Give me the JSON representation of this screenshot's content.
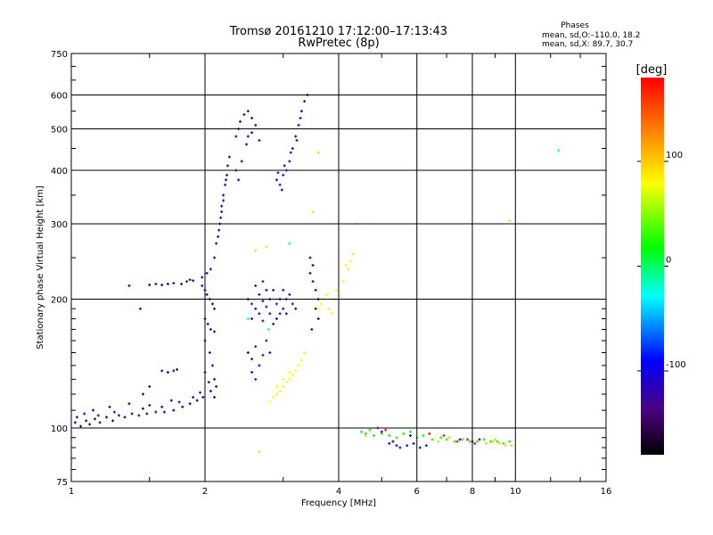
{
  "chart_data": {
    "type": "scatter",
    "title_line1": "Tromsø 20161210 17:12:00–17:13:43",
    "title_line2": "RwPretec (8p)",
    "info_header": "Phases",
    "info_line1": "mean, sd,O:–110.0, 18.2",
    "info_line2": "mean, sd,X:  89.7, 30.7",
    "xlabel": "Frequency [MHz]",
    "ylabel": "Stationary phase Virtual Height [km]",
    "x_scale": "log",
    "y_scale": "log",
    "xlim": [
      1,
      16
    ],
    "ylim": [
      75,
      750
    ],
    "x_ticks": [
      1,
      2,
      4,
      6,
      8,
      10,
      16
    ],
    "x_tick_labels": [
      "1",
      "2",
      "4",
      "6",
      "8",
      "10",
      "16"
    ],
    "y_ticks": [
      75,
      100,
      200,
      300,
      400,
      500,
      600,
      750
    ],
    "y_tick_labels": [
      "75",
      "100",
      "200",
      "300",
      "400",
      "500",
      "600",
      "750"
    ],
    "grid": true,
    "colorbar": {
      "label": "[deg]",
      "range": [
        -180,
        180
      ],
      "ticks": [
        100,
        0,
        -100
      ],
      "tick_labels": [
        "100",
        "0",
        "-100"
      ]
    },
    "clusters": [
      {
        "name": "E-region trace (purple)",
        "color_deg": -150,
        "points": [
          [
            1.02,
            103
          ],
          [
            1.05,
            101
          ],
          [
            1.08,
            104
          ],
          [
            1.1,
            102
          ],
          [
            1.13,
            105
          ],
          [
            1.16,
            103
          ],
          [
            1.2,
            106
          ],
          [
            1.24,
            104
          ],
          [
            1.28,
            107
          ],
          [
            1.32,
            106
          ],
          [
            1.37,
            108
          ],
          [
            1.42,
            107
          ],
          [
            1.48,
            108
          ],
          [
            1.55,
            109
          ],
          [
            1.62,
            109
          ],
          [
            1.7,
            110
          ],
          [
            1.78,
            112
          ],
          [
            1.85,
            114
          ],
          [
            1.92,
            116
          ],
          [
            1.98,
            118
          ],
          [
            1.12,
            110
          ],
          [
            1.22,
            112
          ],
          [
            1.35,
            114
          ],
          [
            1.5,
            113
          ],
          [
            1.68,
            116
          ]
        ]
      },
      {
        "name": "E-region blue fringe",
        "color_deg": -115,
        "points": [
          [
            1.03,
            106
          ],
          [
            1.07,
            108
          ],
          [
            1.15,
            107
          ],
          [
            1.25,
            109
          ],
          [
            1.45,
            111
          ],
          [
            1.6,
            112
          ],
          [
            1.75,
            115
          ],
          [
            1.88,
            118
          ],
          [
            1.95,
            121
          ]
        ]
      },
      {
        "name": "Es layer ~210km",
        "color_deg": -140,
        "points": [
          [
            1.35,
            215
          ],
          [
            1.5,
            216
          ],
          [
            1.55,
            217
          ],
          [
            1.6,
            216
          ],
          [
            1.65,
            217
          ],
          [
            1.7,
            218
          ],
          [
            1.77,
            217
          ],
          [
            1.82,
            220
          ],
          [
            1.85,
            222
          ],
          [
            1.88,
            221
          ],
          [
            1.43,
            190
          ]
        ]
      },
      {
        "name": "Mid purple band ~135km",
        "color_deg": -150,
        "points": [
          [
            1.6,
            136
          ],
          [
            1.65,
            135
          ],
          [
            1.7,
            136
          ],
          [
            1.73,
            137
          ],
          [
            1.5,
            125
          ],
          [
            1.45,
            120
          ]
        ]
      },
      {
        "name": "Blue spread near 2 MHz",
        "color_deg": -110,
        "points": [
          [
            1.97,
            215
          ],
          [
            2.0,
            210
          ],
          [
            2.02,
            205
          ],
          [
            2.05,
            200
          ],
          [
            2.08,
            195
          ],
          [
            2.1,
            190
          ],
          [
            2.0,
            180
          ],
          [
            2.03,
            175
          ],
          [
            2.06,
            170
          ],
          [
            2.1,
            168
          ],
          [
            2.0,
            160
          ],
          [
            2.05,
            150
          ],
          [
            2.08,
            140
          ],
          [
            2.1,
            130
          ],
          [
            2.12,
            125
          ],
          [
            2.0,
            135
          ],
          [
            2.04,
            128
          ],
          [
            2.06,
            122
          ],
          [
            2.1,
            118
          ],
          [
            1.97,
            225
          ],
          [
            2.02,
            230
          ],
          [
            2.06,
            235
          ]
        ]
      },
      {
        "name": "F trace rising (O)",
        "color_deg": -115,
        "points": [
          [
            2.1,
            250
          ],
          [
            2.12,
            270
          ],
          [
            2.15,
            290
          ],
          [
            2.17,
            310
          ],
          [
            2.18,
            330
          ],
          [
            2.2,
            350
          ],
          [
            2.22,
            370
          ],
          [
            2.24,
            390
          ],
          [
            2.25,
            410
          ],
          [
            2.2,
            340
          ],
          [
            2.18,
            320
          ],
          [
            2.23,
            380
          ],
          [
            2.14,
            280
          ],
          [
            2.16,
            300
          ],
          [
            2.27,
            430
          ]
        ]
      },
      {
        "name": "F high (O)",
        "color_deg": -118,
        "points": [
          [
            2.35,
            480
          ],
          [
            2.4,
            520
          ],
          [
            2.45,
            540
          ],
          [
            2.38,
            500
          ],
          [
            2.5,
            550
          ],
          [
            2.55,
            530
          ],
          [
            2.42,
            420
          ],
          [
            2.48,
            460
          ],
          [
            2.5,
            480
          ],
          [
            2.55,
            490
          ],
          [
            2.35,
            400
          ],
          [
            2.38,
            380
          ],
          [
            2.6,
            510
          ],
          [
            2.65,
            470
          ]
        ]
      },
      {
        "name": "Blob 2.4-3.2 ~195km",
        "color_deg": -125,
        "points": [
          [
            2.5,
            200
          ],
          [
            2.55,
            195
          ],
          [
            2.6,
            190
          ],
          [
            2.65,
            205
          ],
          [
            2.7,
            198
          ],
          [
            2.75,
            192
          ],
          [
            2.8,
            200
          ],
          [
            2.85,
            210
          ],
          [
            2.9,
            195
          ],
          [
            2.95,
            185
          ],
          [
            3.0,
            190
          ],
          [
            3.05,
            200
          ],
          [
            3.1,
            205
          ],
          [
            3.15,
            195
          ],
          [
            2.6,
            215
          ],
          [
            2.7,
            220
          ],
          [
            2.8,
            185
          ],
          [
            2.9,
            180
          ],
          [
            2.75,
            210
          ],
          [
            3.0,
            210
          ],
          [
            2.85,
            175
          ],
          [
            2.7,
            178
          ],
          [
            2.55,
            180
          ],
          [
            2.65,
            185
          ],
          [
            2.95,
            200
          ],
          [
            3.05,
            185
          ],
          [
            3.2,
            190
          ]
        ]
      },
      {
        "name": "Blob lower 2.5-2.9 ~150km",
        "color_deg": -120,
        "points": [
          [
            2.5,
            150
          ],
          [
            2.55,
            145
          ],
          [
            2.6,
            155
          ],
          [
            2.65,
            140
          ],
          [
            2.7,
            148
          ],
          [
            2.75,
            160
          ],
          [
            2.8,
            150
          ],
          [
            2.55,
            135
          ],
          [
            2.6,
            130
          ]
        ]
      },
      {
        "name": "F upper near 3 MHz",
        "color_deg": -112,
        "points": [
          [
            2.9,
            380
          ],
          [
            2.95,
            370
          ],
          [
            3.0,
            390
          ],
          [
            3.05,
            400
          ],
          [
            2.98,
            360
          ],
          [
            3.1,
            420
          ],
          [
            3.15,
            450
          ],
          [
            3.2,
            480
          ],
          [
            3.25,
            510
          ],
          [
            3.3,
            550
          ],
          [
            3.35,
            580
          ],
          [
            3.4,
            600
          ],
          [
            3.22,
            470
          ],
          [
            3.28,
            530
          ],
          [
            2.92,
            395
          ],
          [
            3.02,
            410
          ],
          [
            3.12,
            440
          ]
        ]
      },
      {
        "name": "Purple column near 3.6",
        "color_deg": -150,
        "points": [
          [
            3.45,
            230
          ],
          [
            3.5,
            220
          ],
          [
            3.55,
            210
          ],
          [
            3.6,
            200
          ],
          [
            3.5,
            240
          ],
          [
            3.45,
            250
          ],
          [
            3.55,
            190
          ],
          [
            3.6,
            180
          ],
          [
            3.48,
            170
          ]
        ]
      },
      {
        "name": "Yellow-green X trace",
        "color_deg": 80,
        "points": [
          [
            2.8,
            115
          ],
          [
            2.85,
            118
          ],
          [
            2.9,
            120
          ],
          [
            2.95,
            122
          ],
          [
            3.0,
            125
          ],
          [
            3.05,
            128
          ],
          [
            3.1,
            130
          ],
          [
            3.15,
            133
          ],
          [
            3.2,
            136
          ],
          [
            3.25,
            140
          ],
          [
            3.3,
            144
          ],
          [
            3.35,
            150
          ],
          [
            3.0,
            130
          ],
          [
            3.1,
            135
          ],
          [
            2.9,
            125
          ]
        ]
      },
      {
        "name": "Yellow-green near 3.6-3.9",
        "color_deg": 75,
        "points": [
          [
            3.6,
            190
          ],
          [
            3.65,
            195
          ],
          [
            3.7,
            200
          ],
          [
            3.75,
            205
          ],
          [
            3.8,
            190
          ],
          [
            3.85,
            185
          ],
          [
            3.9,
            200
          ],
          [
            3.95,
            210
          ],
          [
            4.1,
            220
          ],
          [
            4.2,
            235
          ],
          [
            4.25,
            245
          ],
          [
            4.3,
            255
          ],
          [
            4.15,
            240
          ]
        ]
      },
      {
        "name": "Scattered green/yellow",
        "color_deg": 60,
        "points": [
          [
            2.6,
            260
          ],
          [
            2.75,
            265
          ],
          [
            3.5,
            320
          ],
          [
            3.6,
            440
          ],
          [
            4.4,
            300
          ],
          [
            9.7,
            305
          ],
          [
            2.65,
            88
          ]
        ]
      },
      {
        "name": "Cyan isolated",
        "color_deg": -20,
        "points": [
          [
            12.5,
            445
          ],
          [
            3.1,
            270
          ],
          [
            2.78,
            170
          ],
          [
            2.5,
            180
          ]
        ]
      },
      {
        "name": "Sporadic E high-freq band",
        "color_deg": 20,
        "points": [
          [
            4.5,
            98
          ],
          [
            4.6,
            97
          ],
          [
            4.7,
            99
          ],
          [
            4.8,
            96
          ],
          [
            5.0,
            97
          ],
          [
            5.2,
            96
          ],
          [
            5.4,
            95
          ],
          [
            5.6,
            97
          ],
          [
            5.8,
            98
          ],
          [
            6.0,
            95
          ],
          [
            6.2,
            96
          ],
          [
            6.5,
            94
          ],
          [
            6.8,
            95
          ],
          [
            7.0,
            94
          ],
          [
            7.3,
            93
          ],
          [
            7.6,
            94
          ],
          [
            7.9,
            93
          ],
          [
            8.2,
            93
          ],
          [
            8.5,
            94
          ],
          [
            8.8,
            93
          ],
          [
            9.1,
            93
          ],
          [
            9.4,
            92
          ],
          [
            9.7,
            93
          ]
        ]
      },
      {
        "name": "Sporadic E blue parts",
        "color_deg": -110,
        "points": [
          [
            5.2,
            92
          ],
          [
            5.4,
            91
          ],
          [
            5.5,
            90
          ],
          [
            5.7,
            91
          ],
          [
            5.9,
            92
          ],
          [
            6.1,
            90
          ],
          [
            6.3,
            91
          ],
          [
            5.3,
            93
          ],
          [
            7.5,
            94
          ],
          [
            8.0,
            93
          ],
          [
            8.3,
            94
          ],
          [
            5.0,
            98
          ],
          [
            5.8,
            96
          ]
        ]
      },
      {
        "name": "Sporadic E yellow parts",
        "color_deg": 100,
        "points": [
          [
            8.6,
            92
          ],
          [
            8.9,
            93
          ],
          [
            9.2,
            92
          ],
          [
            9.5,
            91
          ],
          [
            9.0,
            94
          ],
          [
            9.8,
            91
          ],
          [
            4.6,
            96
          ],
          [
            6.7,
            93
          ],
          [
            7.1,
            95
          ]
        ]
      },
      {
        "name": "Sporadic E red parts",
        "color_deg": 175,
        "points": [
          [
            4.9,
            100
          ],
          [
            5.1,
            99
          ],
          [
            6.4,
            97
          ],
          [
            6.9,
            96
          ],
          [
            7.4,
            93
          ],
          [
            7.8,
            94
          ],
          [
            8.1,
            92
          ]
        ]
      }
    ]
  }
}
